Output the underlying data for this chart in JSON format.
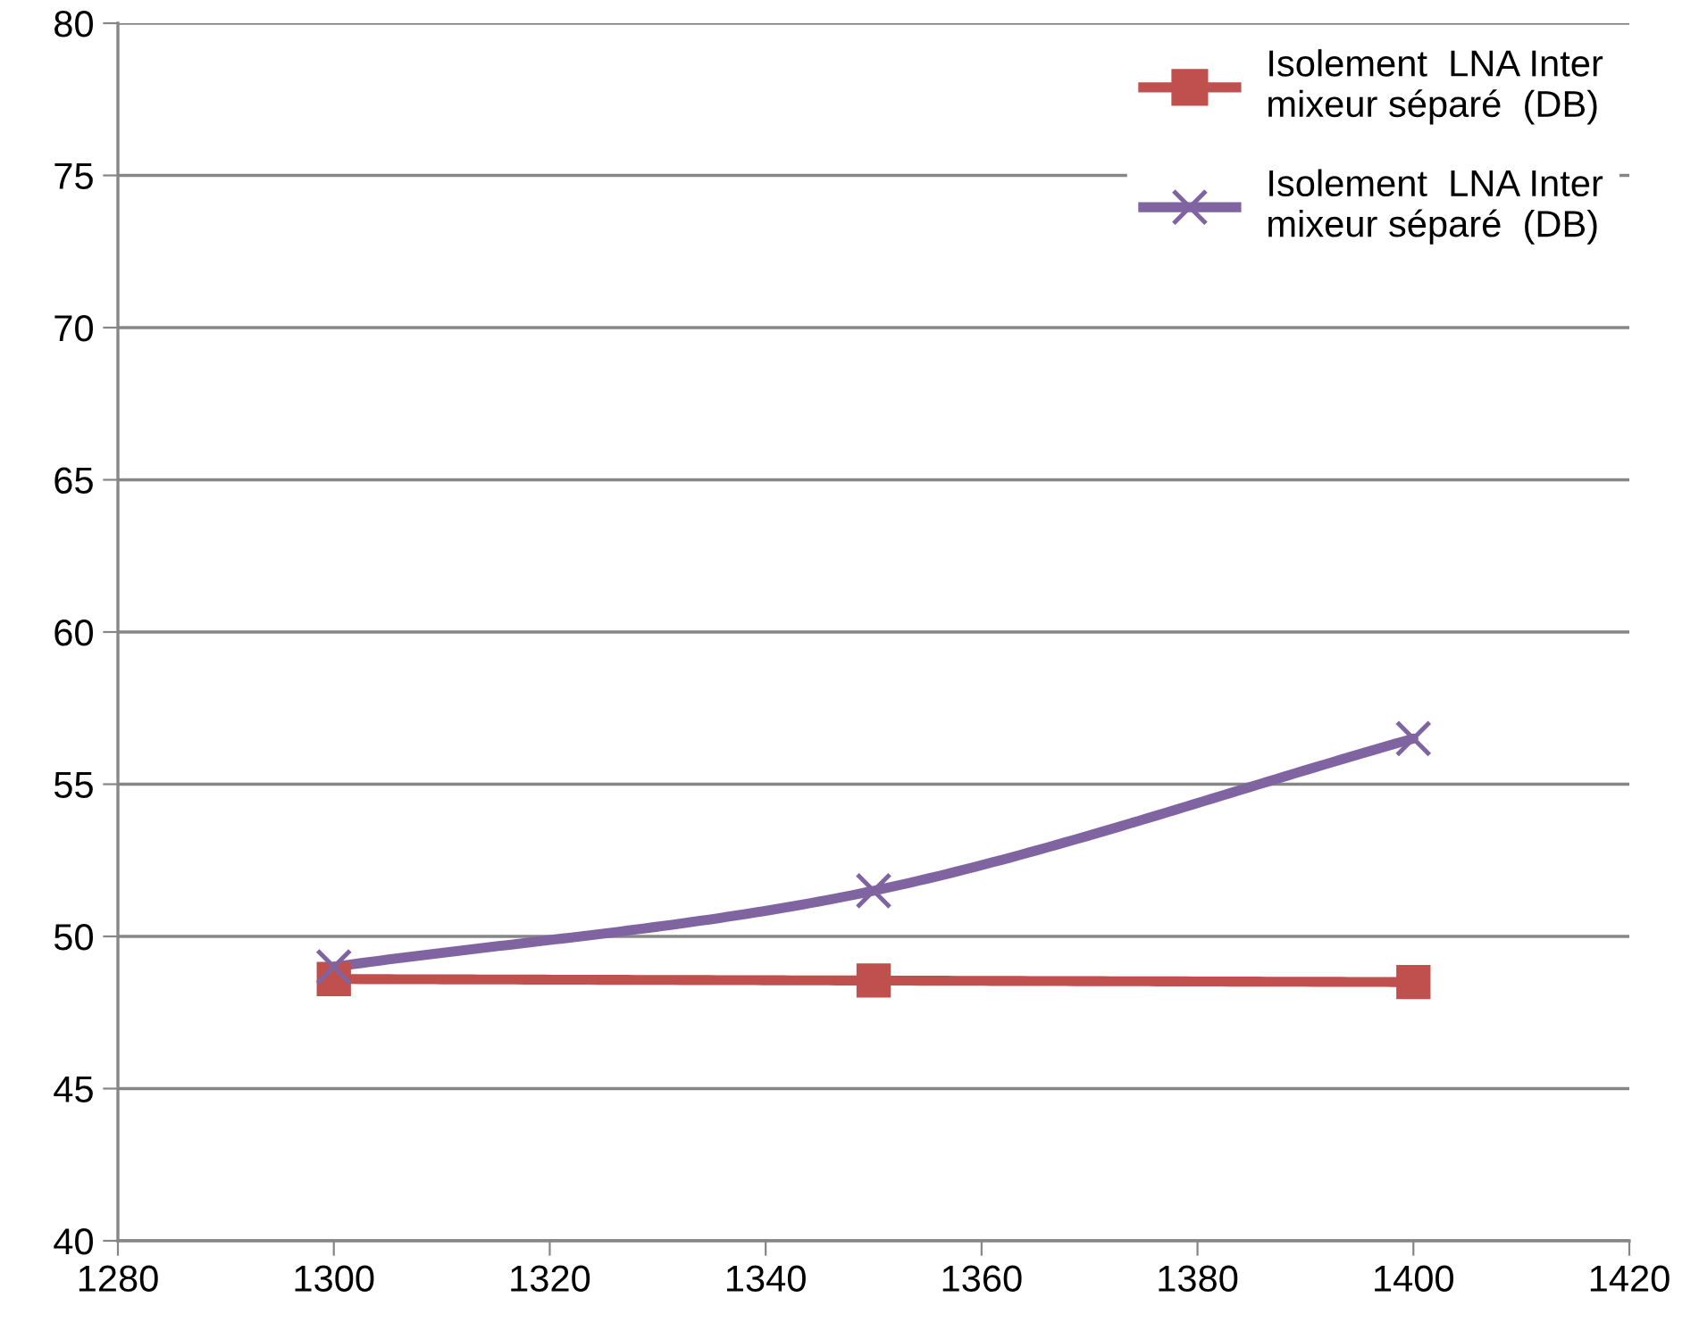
{
  "chart_data": {
    "type": "line",
    "x": [
      1300,
      1350,
      1400
    ],
    "series": [
      {
        "name": "Isolement  LNA Inter\nmixeur séparé  (DB)",
        "color": "#c0504d",
        "marker": "square",
        "values": [
          48.6,
          48.55,
          48.5
        ]
      },
      {
        "name": "Isolement  LNA Inter\nmixeur séparé  (DB)",
        "color": "#8064a2",
        "marker": "cross",
        "values": [
          49.0,
          51.5,
          56.5
        ]
      }
    ],
    "xlim": [
      1280,
      1420
    ],
    "xticks": [
      1280,
      1300,
      1320,
      1340,
      1360,
      1380,
      1400,
      1420
    ],
    "ylim": [
      40,
      80
    ],
    "yticks": [
      40,
      45,
      50,
      55,
      60,
      65,
      70,
      75,
      80
    ],
    "grid": "y",
    "legend": "top right",
    "line_style": "solid"
  }
}
